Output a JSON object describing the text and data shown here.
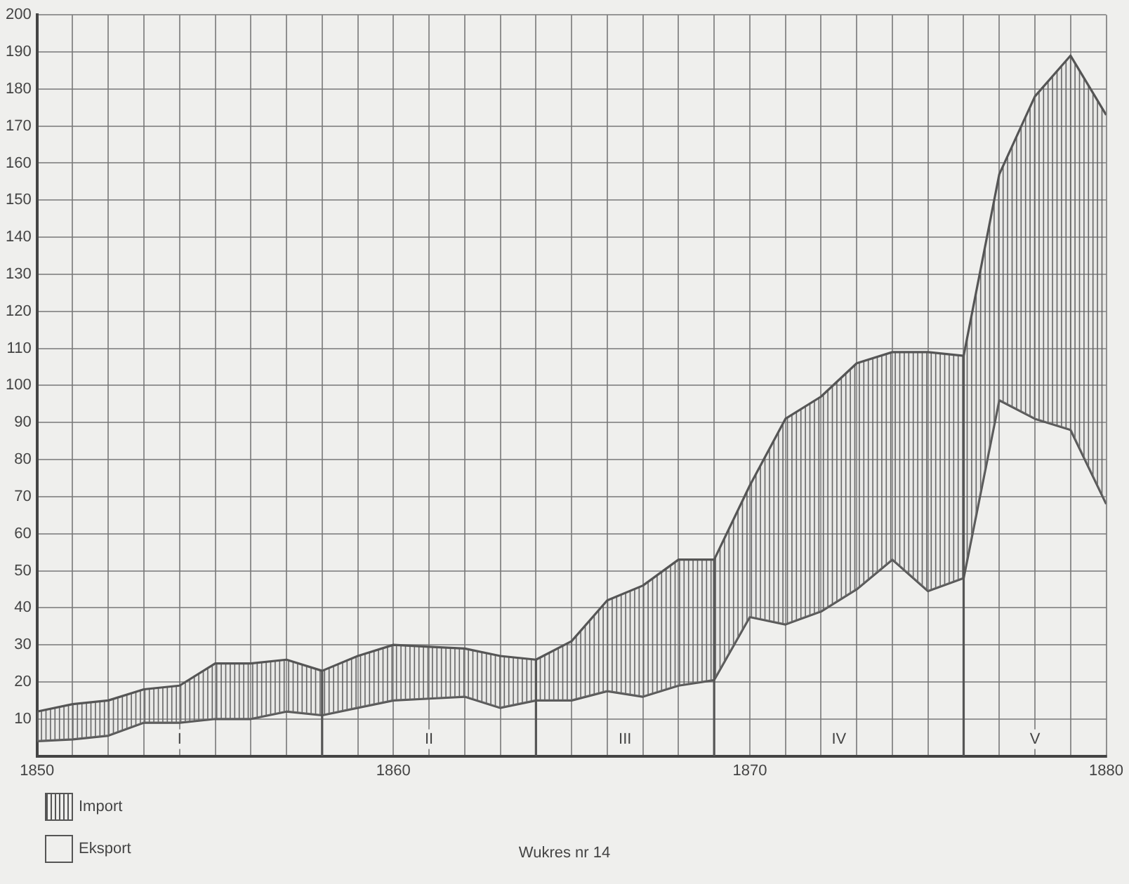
{
  "chart_data": {
    "type": "area",
    "x": [
      1850,
      1851,
      1852,
      1853,
      1854,
      1855,
      1856,
      1857,
      1858,
      1859,
      1860,
      1861,
      1862,
      1863,
      1864,
      1865,
      1866,
      1867,
      1868,
      1869,
      1870,
      1871,
      1872,
      1873,
      1874,
      1875,
      1876,
      1877,
      1878,
      1879,
      1880
    ],
    "series": [
      {
        "name": "Import",
        "type": "area",
        "color": "#555555",
        "values": [
          12,
          14,
          15,
          18,
          19,
          25,
          25,
          26,
          23,
          27,
          30,
          29.5,
          29,
          27,
          26,
          31,
          42,
          46,
          53,
          53,
          73,
          91,
          97,
          106,
          109,
          109,
          108,
          157,
          178,
          189,
          173
        ]
      },
      {
        "name": "Eksport",
        "type": "line",
        "color": "#555555",
        "values": [
          4,
          4.5,
          5.5,
          9,
          9,
          10,
          10,
          12,
          11,
          13,
          15,
          15.5,
          16,
          13,
          15,
          15,
          17.5,
          16,
          19,
          20.5,
          37.5,
          35.5,
          39,
          45,
          53,
          44.5,
          48,
          96,
          91,
          88,
          68
        ]
      }
    ],
    "xlim": [
      1850,
      1880
    ],
    "xticks": [
      1850,
      {
        "value": 1851,
        "label": null
      },
      {
        "value": 1852,
        "label": null
      },
      {
        "value": 1853,
        "label": null
      },
      {
        "value": 1854,
        "label": null
      },
      {
        "value": 1855,
        "label": null
      },
      {
        "value": 1856,
        "label": null
      },
      {
        "value": 1857,
        "label": null
      },
      {
        "value": 1858,
        "label": null
      },
      {
        "value": 1859,
        "label": null
      },
      1860,
      {
        "value": 1861,
        "label": null
      },
      {
        "value": 1862,
        "label": null
      },
      {
        "value": 1863,
        "label": null
      },
      {
        "value": 1864,
        "label": null
      },
      {
        "value": 1865,
        "label": null
      },
      {
        "value": 1866,
        "label": null
      },
      {
        "value": 1867,
        "label": null
      },
      {
        "value": 1868,
        "label": null
      },
      {
        "value": 1869,
        "label": null
      },
      1870,
      {
        "value": 1871,
        "label": null
      },
      {
        "value": 1872,
        "label": null
      },
      {
        "value": 1873,
        "label": null
      },
      {
        "value": 1874,
        "label": null
      },
      {
        "value": 1875,
        "label": null
      },
      {
        "value": 1876,
        "label": null
      },
      {
        "value": 1877,
        "label": null
      },
      {
        "value": 1878,
        "label": null
      },
      {
        "value": 1879,
        "label": null
      },
      1880
    ],
    "ylim": [
      0,
      200
    ],
    "yticks": [
      10,
      20,
      30,
      40,
      50,
      60,
      70,
      80,
      90,
      100,
      110,
      120,
      130,
      140,
      150,
      160,
      170,
      180,
      190,
      200
    ],
    "ref_lines": [
      {
        "axis": "x",
        "value": 1858,
        "color": "#555555"
      },
      {
        "axis": "x",
        "value": 1864,
        "color": "#555555"
      },
      {
        "axis": "x",
        "value": 1869,
        "color": "#555555"
      },
      {
        "axis": "x",
        "value": 1876,
        "color": "#555555"
      }
    ],
    "annotations": [
      "I",
      "II",
      "III",
      "IV",
      "V",
      "Wukres nr 14"
    ],
    "grid": true,
    "legend": "bottom left",
    "marker": "none"
  }
}
